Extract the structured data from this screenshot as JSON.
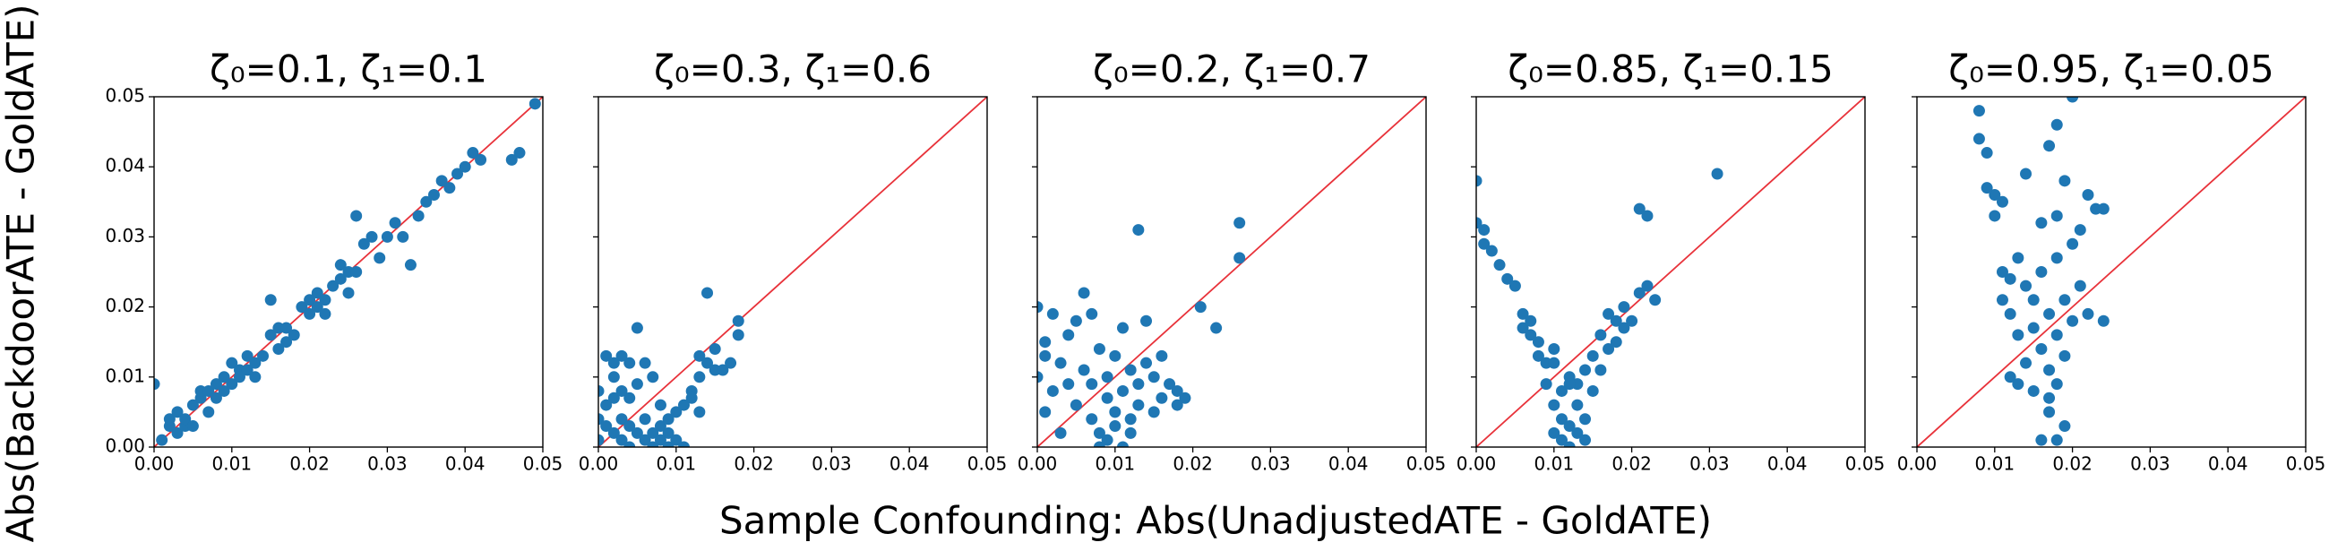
{
  "xlabel": "Sample Confounding: Abs(UnadjustedATE - GoldATE)",
  "ylabel": "Abs(BackdoorATE - GoldATE)",
  "chart_data": [
    {
      "type": "scatter",
      "title": "ζ₀=0.1, ζ₁=0.1",
      "color": "#1f77b4",
      "diagonal": true,
      "diagonal_color": "#e8323a",
      "ytick_labels": true,
      "xlim": [
        0,
        0.05
      ],
      "ylim": [
        0,
        0.05
      ],
      "xticks": [
        {
          "value": 0,
          "label": "0.00"
        },
        {
          "value": 0.01,
          "label": "0.01"
        },
        {
          "value": 0.02,
          "label": "0.02"
        },
        {
          "value": 0.03,
          "label": "0.03"
        },
        {
          "value": 0.04,
          "label": "0.04"
        },
        {
          "value": 0.05,
          "label": "0.05"
        }
      ],
      "yticks": [
        {
          "value": 0,
          "label": "0.00"
        },
        {
          "value": 0.01,
          "label": "0.01"
        },
        {
          "value": 0.02,
          "label": "0.02"
        },
        {
          "value": 0.03,
          "label": "0.03"
        },
        {
          "value": 0.04,
          "label": "0.04"
        },
        {
          "value": 0.05,
          "label": "0.05"
        }
      ],
      "x": [
        0.0,
        0.001,
        0.002,
        0.002,
        0.003,
        0.003,
        0.004,
        0.004,
        0.005,
        0.005,
        0.006,
        0.006,
        0.007,
        0.007,
        0.008,
        0.008,
        0.009,
        0.009,
        0.01,
        0.01,
        0.011,
        0.011,
        0.012,
        0.012,
        0.013,
        0.013,
        0.014,
        0.015,
        0.015,
        0.016,
        0.016,
        0.017,
        0.017,
        0.018,
        0.019,
        0.02,
        0.02,
        0.021,
        0.021,
        0.022,
        0.022,
        0.023,
        0.024,
        0.024,
        0.025,
        0.025,
        0.026,
        0.026,
        0.027,
        0.028,
        0.029,
        0.03,
        0.031,
        0.032,
        0.033,
        0.034,
        0.035,
        0.036,
        0.037,
        0.038,
        0.039,
        0.04,
        0.041,
        0.042,
        0.046,
        0.047,
        0.049
      ],
      "values": [
        0.009,
        0.001,
        0.003,
        0.004,
        0.002,
        0.005,
        0.003,
        0.004,
        0.003,
        0.006,
        0.007,
        0.008,
        0.005,
        0.008,
        0.009,
        0.007,
        0.01,
        0.008,
        0.012,
        0.009,
        0.011,
        0.01,
        0.013,
        0.011,
        0.012,
        0.01,
        0.013,
        0.016,
        0.021,
        0.017,
        0.014,
        0.015,
        0.017,
        0.016,
        0.02,
        0.021,
        0.019,
        0.02,
        0.022,
        0.021,
        0.019,
        0.023,
        0.024,
        0.026,
        0.025,
        0.022,
        0.033,
        0.025,
        0.029,
        0.03,
        0.027,
        0.03,
        0.032,
        0.03,
        0.026,
        0.033,
        0.035,
        0.036,
        0.038,
        0.037,
        0.039,
        0.04,
        0.042,
        0.041,
        0.041,
        0.042,
        0.049
      ]
    },
    {
      "type": "scatter",
      "title": "ζ₀=0.3, ζ₁=0.6",
      "color": "#1f77b4",
      "diagonal": true,
      "diagonal_color": "#e8323a",
      "ytick_labels": false,
      "xlim": [
        0,
        0.05
      ],
      "ylim": [
        0,
        0.05
      ],
      "xticks": [
        {
          "value": 0,
          "label": "0.00"
        },
        {
          "value": 0.01,
          "label": "0.01"
        },
        {
          "value": 0.02,
          "label": "0.02"
        },
        {
          "value": 0.03,
          "label": "0.03"
        },
        {
          "value": 0.04,
          "label": "0.04"
        },
        {
          "value": 0.05,
          "label": "0.05"
        }
      ],
      "yticks": [
        0,
        0.01,
        0.02,
        0.03,
        0.04,
        0.05
      ],
      "x": [
        0.0,
        0.0,
        0.0,
        0.001,
        0.001,
        0.001,
        0.002,
        0.002,
        0.002,
        0.003,
        0.003,
        0.003,
        0.004,
        0.004,
        0.004,
        0.005,
        0.005,
        0.005,
        0.006,
        0.006,
        0.006,
        0.007,
        0.007,
        0.007,
        0.008,
        0.008,
        0.008,
        0.009,
        0.009,
        0.009,
        0.01,
        0.01,
        0.011,
        0.011,
        0.012,
        0.012,
        0.013,
        0.013,
        0.014,
        0.014,
        0.015,
        0.015,
        0.016,
        0.017,
        0.018,
        0.018,
        0.013,
        0.002,
        0.004,
        0.003
      ],
      "values": [
        0.001,
        0.004,
        0.008,
        0.013,
        0.006,
        0.003,
        0.01,
        0.002,
        0.012,
        0.004,
        0.001,
        0.013,
        0.003,
        0.0,
        0.007,
        0.017,
        0.002,
        0.009,
        0.001,
        0.004,
        0.012,
        0.002,
        0.0,
        0.01,
        0.003,
        0.001,
        0.006,
        0.0,
        0.004,
        0.002,
        0.005,
        0.001,
        0.006,
        0.0,
        0.008,
        0.007,
        0.01,
        0.013,
        0.012,
        0.022,
        0.014,
        0.011,
        0.011,
        0.012,
        0.018,
        0.016,
        0.005,
        0.007,
        0.012,
        0.008
      ]
    },
    {
      "type": "scatter",
      "title": "ζ₀=0.2, ζ₁=0.7",
      "color": "#1f77b4",
      "diagonal": true,
      "diagonal_color": "#e8323a",
      "ytick_labels": false,
      "xlim": [
        0,
        0.05
      ],
      "ylim": [
        0,
        0.05
      ],
      "xticks": [
        {
          "value": 0,
          "label": "0.00"
        },
        {
          "value": 0.01,
          "label": "0.01"
        },
        {
          "value": 0.02,
          "label": "0.02"
        },
        {
          "value": 0.03,
          "label": "0.03"
        },
        {
          "value": 0.04,
          "label": "0.04"
        },
        {
          "value": 0.05,
          "label": "0.05"
        }
      ],
      "yticks": [
        0,
        0.01,
        0.02,
        0.03,
        0.04,
        0.05
      ],
      "x": [
        0.0,
        0.0,
        0.001,
        0.001,
        0.001,
        0.002,
        0.002,
        0.003,
        0.003,
        0.004,
        0.004,
        0.005,
        0.005,
        0.006,
        0.006,
        0.007,
        0.007,
        0.007,
        0.008,
        0.008,
        0.008,
        0.009,
        0.009,
        0.009,
        0.01,
        0.01,
        0.01,
        0.011,
        0.011,
        0.011,
        0.012,
        0.012,
        0.012,
        0.013,
        0.013,
        0.013,
        0.014,
        0.014,
        0.015,
        0.015,
        0.016,
        0.016,
        0.017,
        0.018,
        0.018,
        0.019,
        0.021,
        0.023,
        0.026,
        0.026
      ],
      "values": [
        0.02,
        0.01,
        0.015,
        0.005,
        0.013,
        0.019,
        0.008,
        0.012,
        0.002,
        0.016,
        0.009,
        0.018,
        0.006,
        0.022,
        0.011,
        0.004,
        0.019,
        0.009,
        0.002,
        0.014,
        0.0,
        0.007,
        0.01,
        0.001,
        0.005,
        0.013,
        0.003,
        0.008,
        0.0,
        0.017,
        0.011,
        0.004,
        0.002,
        0.031,
        0.009,
        0.006,
        0.012,
        0.018,
        0.01,
        0.005,
        0.013,
        0.007,
        0.009,
        0.006,
        0.008,
        0.007,
        0.02,
        0.017,
        0.032,
        0.027
      ]
    },
    {
      "type": "scatter",
      "title": "ζ₀=0.85, ζ₁=0.15",
      "color": "#1f77b4",
      "diagonal": true,
      "diagonal_color": "#e8323a",
      "ytick_labels": false,
      "xlim": [
        0,
        0.05
      ],
      "ylim": [
        0,
        0.05
      ],
      "xticks": [
        {
          "value": 0,
          "label": "0.00"
        },
        {
          "value": 0.01,
          "label": "0.01"
        },
        {
          "value": 0.02,
          "label": "0.02"
        },
        {
          "value": 0.03,
          "label": "0.03"
        },
        {
          "value": 0.04,
          "label": "0.04"
        },
        {
          "value": 0.05,
          "label": "0.05"
        }
      ],
      "yticks": [
        0,
        0.01,
        0.02,
        0.03,
        0.04,
        0.05
      ],
      "x": [
        0.0,
        0.0,
        0.001,
        0.001,
        0.002,
        0.003,
        0.004,
        0.005,
        0.006,
        0.006,
        0.007,
        0.007,
        0.008,
        0.008,
        0.009,
        0.009,
        0.01,
        0.01,
        0.01,
        0.011,
        0.011,
        0.011,
        0.012,
        0.012,
        0.012,
        0.013,
        0.013,
        0.013,
        0.014,
        0.014,
        0.014,
        0.015,
        0.015,
        0.016,
        0.016,
        0.017,
        0.017,
        0.018,
        0.018,
        0.019,
        0.019,
        0.02,
        0.021,
        0.021,
        0.022,
        0.022,
        0.023,
        0.031,
        0.012,
        0.01
      ],
      "values": [
        0.038,
        0.032,
        0.031,
        0.029,
        0.028,
        0.026,
        0.024,
        0.023,
        0.019,
        0.017,
        0.016,
        0.018,
        0.015,
        0.013,
        0.012,
        0.009,
        0.014,
        0.006,
        0.002,
        0.008,
        0.004,
        0.001,
        0.003,
        0.01,
        0.0,
        0.006,
        0.002,
        0.009,
        0.004,
        0.011,
        0.001,
        0.008,
        0.013,
        0.016,
        0.011,
        0.014,
        0.019,
        0.018,
        0.015,
        0.02,
        0.017,
        0.018,
        0.022,
        0.034,
        0.033,
        0.023,
        0.021,
        0.039,
        0.009,
        0.012
      ]
    },
    {
      "type": "scatter",
      "title": "ζ₀=0.95, ζ₁=0.05",
      "color": "#1f77b4",
      "diagonal": true,
      "diagonal_color": "#e8323a",
      "ytick_labels": false,
      "xlim": [
        0,
        0.05
      ],
      "ylim": [
        0,
        0.05
      ],
      "xticks": [
        {
          "value": 0,
          "label": "0.00"
        },
        {
          "value": 0.01,
          "label": "0.01"
        },
        {
          "value": 0.02,
          "label": "0.02"
        },
        {
          "value": 0.03,
          "label": "0.03"
        },
        {
          "value": 0.04,
          "label": "0.04"
        },
        {
          "value": 0.05,
          "label": "0.05"
        }
      ],
      "yticks": [
        0,
        0.01,
        0.02,
        0.03,
        0.04,
        0.05
      ],
      "x": [
        0.008,
        0.008,
        0.009,
        0.01,
        0.01,
        0.011,
        0.011,
        0.011,
        0.012,
        0.012,
        0.012,
        0.013,
        0.013,
        0.014,
        0.014,
        0.014,
        0.015,
        0.015,
        0.015,
        0.016,
        0.016,
        0.016,
        0.017,
        0.017,
        0.017,
        0.017,
        0.018,
        0.018,
        0.018,
        0.018,
        0.018,
        0.018,
        0.019,
        0.019,
        0.019,
        0.019,
        0.02,
        0.02,
        0.02,
        0.021,
        0.021,
        0.022,
        0.022,
        0.023,
        0.024,
        0.024,
        0.016,
        0.017,
        0.013,
        0.009
      ],
      "values": [
        0.048,
        0.044,
        0.042,
        0.036,
        0.033,
        0.035,
        0.025,
        0.021,
        0.024,
        0.019,
        0.01,
        0.027,
        0.016,
        0.039,
        0.023,
        0.012,
        0.017,
        0.021,
        0.008,
        0.014,
        0.025,
        0.032,
        0.019,
        0.011,
        0.005,
        0.043,
        0.046,
        0.027,
        0.016,
        0.001,
        0.009,
        0.033,
        0.038,
        0.021,
        0.013,
        0.003,
        0.05,
        0.018,
        0.029,
        0.031,
        0.023,
        0.036,
        0.019,
        0.034,
        0.018,
        0.034,
        0.001,
        0.007,
        0.009,
        0.037
      ]
    }
  ]
}
